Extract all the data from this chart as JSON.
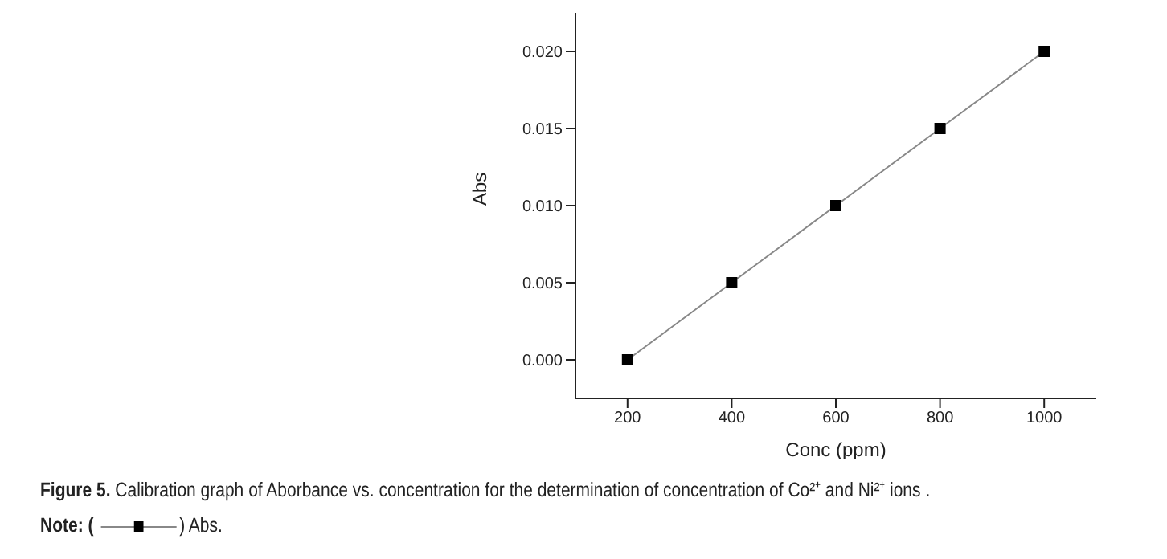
{
  "chart_data": {
    "type": "line",
    "xlabel": "Conc (ppm)",
    "ylabel": "Abs",
    "x": [
      200,
      400,
      600,
      800,
      1000
    ],
    "series": [
      {
        "name": ") Abs.",
        "color": "#000000",
        "values": [
          0.0,
          0.005,
          0.01,
          0.015,
          0.02
        ]
      }
    ],
    "xlim": [
      100,
      1100
    ],
    "xticks": [
      200,
      400,
      600,
      800,
      1000
    ],
    "ylim": [
      -0.0025,
      0.0225
    ],
    "yticks": [
      {
        "value": 0,
        "label": "0.000"
      },
      {
        "value": 0.005,
        "label": "0.005"
      },
      {
        "value": 0.01,
        "label": "0.010"
      },
      {
        "value": 0.015,
        "label": "0.015"
      },
      {
        "value": 0.02,
        "label": "0.020"
      }
    ],
    "marker": "square",
    "line_style": "solid",
    "grid": false,
    "legend": "bottom",
    "legend_title": "Note: (",
    "annotations": [
      "Figure 5. Calibration graph of Aborbance vs. concentration for the determination of concentration of Co²⁺ and Ni²⁺ ions ."
    ]
  }
}
